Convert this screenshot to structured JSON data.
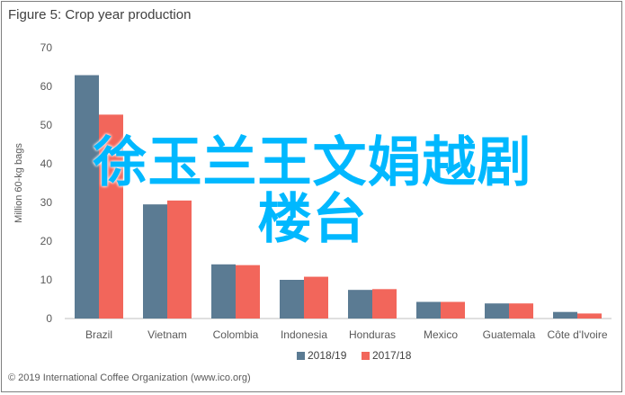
{
  "title": "Figure 5: Crop year production",
  "footer": "© 2019 International Coffee Organization (www.ico.org)",
  "overlay_text": [
    "徐玉兰王文娟越剧",
    "楼台"
  ],
  "colors": {
    "series1": "#5b7b93",
    "series2": "#f2665b",
    "axis": "#bfbfbf",
    "overlay": "#00b8ff"
  },
  "chart_data": {
    "type": "bar",
    "title": "Figure 5: Crop year production",
    "ylabel": "Million 60-kg bags",
    "xlabel": "",
    "ylim": [
      0,
      70
    ],
    "yticks": [
      0,
      10,
      20,
      30,
      40,
      50,
      60,
      70
    ],
    "categories": [
      "Brazil",
      "Vietnam",
      "Colombia",
      "Indonesia",
      "Honduras",
      "Mexico",
      "Guatemala",
      "Côte d'Ivoire"
    ],
    "series": [
      {
        "name": "2018/19",
        "values": [
          62.9,
          29.5,
          14.0,
          10.0,
          7.4,
          4.3,
          3.9,
          1.7
        ]
      },
      {
        "name": "2017/18",
        "values": [
          52.7,
          30.5,
          13.8,
          10.8,
          7.6,
          4.3,
          3.9,
          1.3
        ]
      }
    ],
    "legend": "bottom",
    "grid": false
  }
}
